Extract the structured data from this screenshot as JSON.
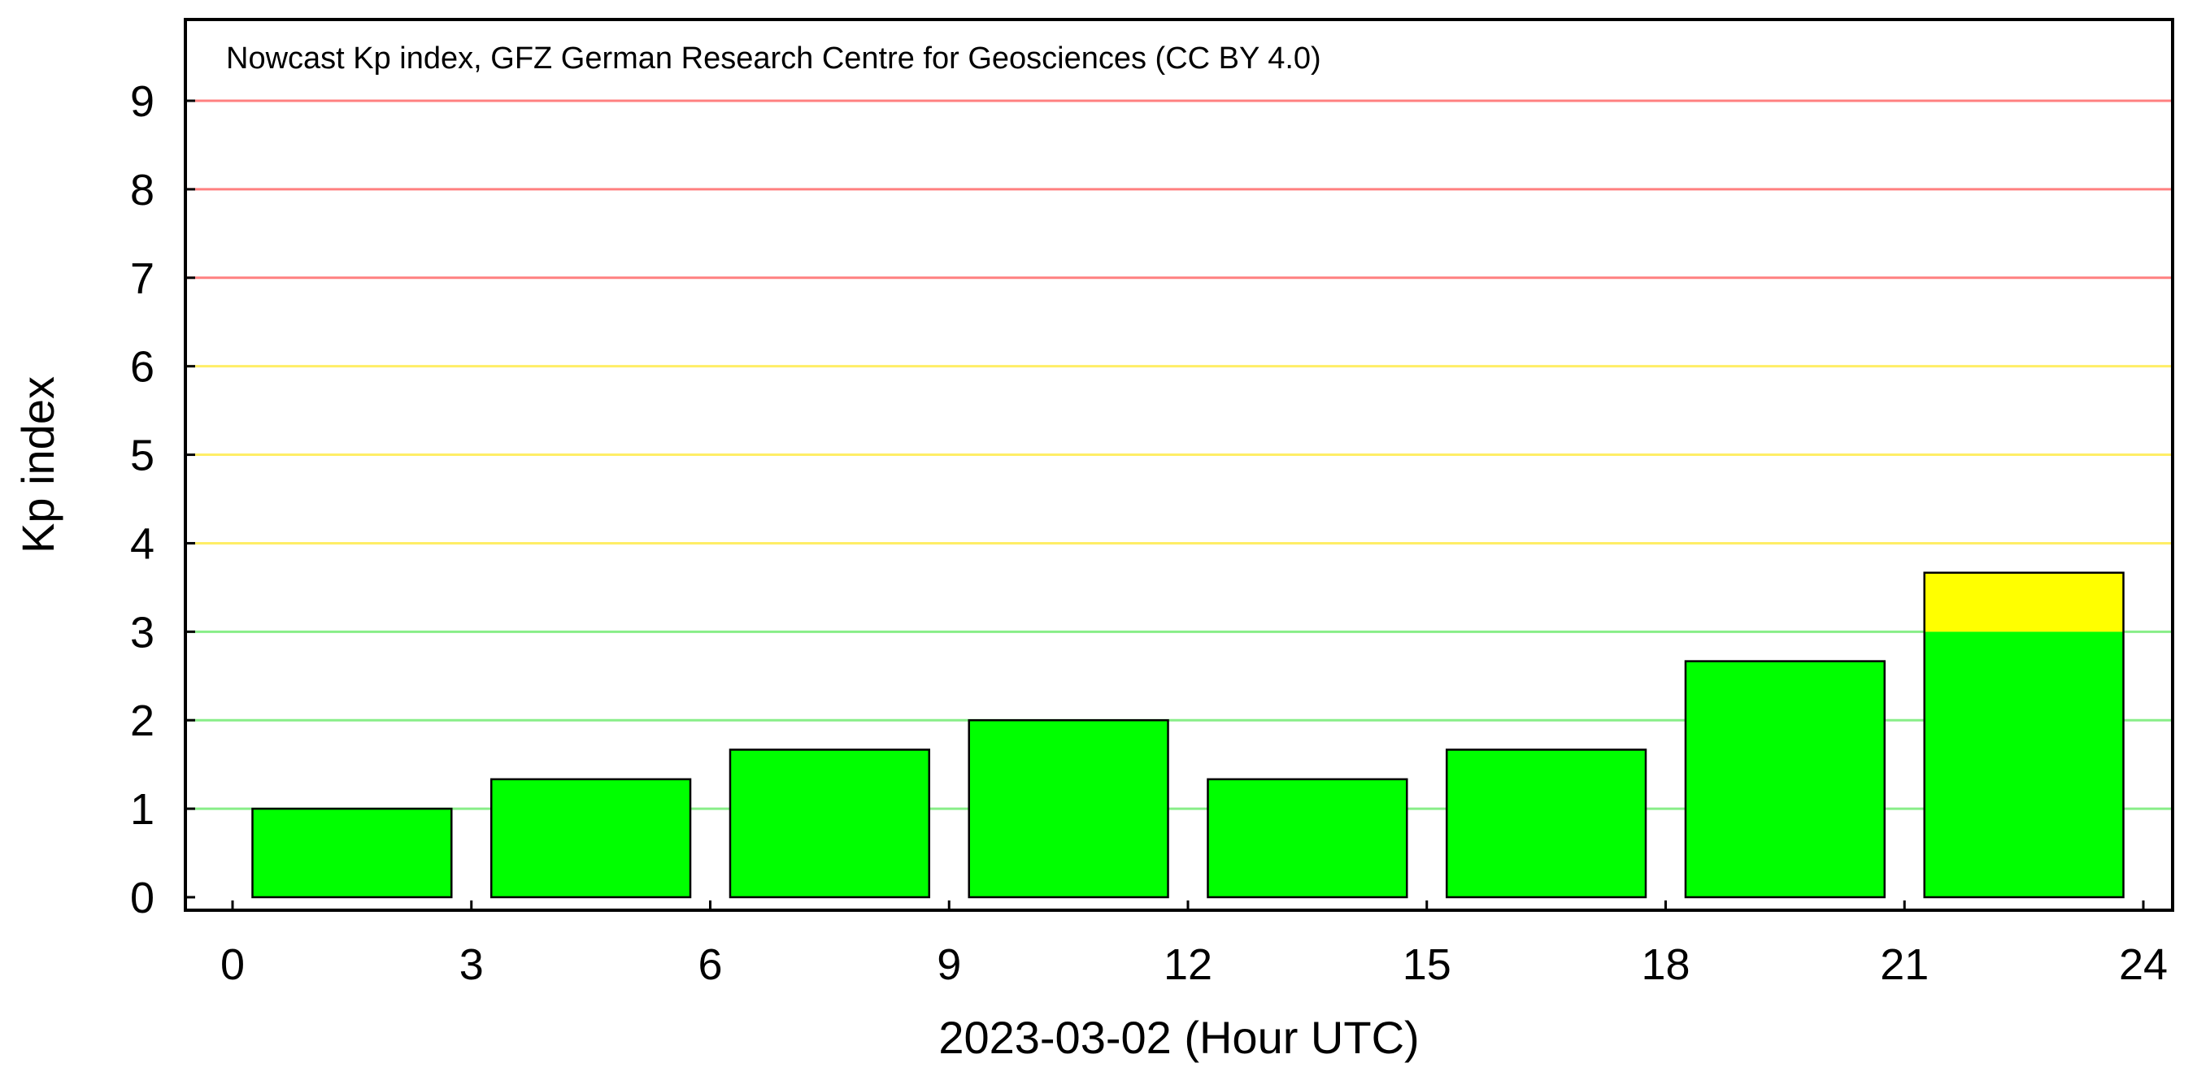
{
  "chart_data": {
    "type": "bar",
    "title": "Nowcast Kp index, GFZ German Research Centre for Geosciences (CC BY 4.0)",
    "xlabel": "2023-03-02 (Hour UTC)",
    "ylabel": "Kp index",
    "xlim": [
      0,
      24
    ],
    "ylim": [
      0,
      9
    ],
    "x_ticks": [
      "0",
      "3",
      "6",
      "9",
      "12",
      "15",
      "18",
      "21",
      "24"
    ],
    "y_ticks": [
      "0",
      "1",
      "2",
      "3",
      "4",
      "5",
      "6",
      "7",
      "8",
      "9"
    ],
    "bar_width_hours": 3,
    "bars": [
      {
        "start": 0,
        "end": 3,
        "value": 1.0
      },
      {
        "start": 3,
        "end": 6,
        "value": 1.333
      },
      {
        "start": 6,
        "end": 9,
        "value": 1.667
      },
      {
        "start": 9,
        "end": 12,
        "value": 2.0
      },
      {
        "start": 12,
        "end": 15,
        "value": 1.333
      },
      {
        "start": 15,
        "end": 18,
        "value": 1.667
      },
      {
        "start": 18,
        "end": 21,
        "value": 2.667
      },
      {
        "start": 21,
        "end": 24,
        "value": 3.667
      }
    ],
    "thresholds": [
      {
        "range": [
          0,
          3
        ],
        "color": "#00ff00"
      },
      {
        "range": [
          3,
          6
        ],
        "color": "#ffff00"
      },
      {
        "range": [
          6,
          9
        ],
        "color": "#ff0000"
      }
    ],
    "gridlines": [
      {
        "value": 1,
        "color": "#88ee88"
      },
      {
        "value": 2,
        "color": "#88ee88"
      },
      {
        "value": 3,
        "color": "#88ee88"
      },
      {
        "value": 4,
        "color": "#ffee66"
      },
      {
        "value": 5,
        "color": "#ffee66"
      },
      {
        "value": 6,
        "color": "#ffee66"
      },
      {
        "value": 7,
        "color": "#ff8080"
      },
      {
        "value": 8,
        "color": "#ff8080"
      },
      {
        "value": 9,
        "color": "#ff8080"
      }
    ],
    "grid": true,
    "legend": "none"
  }
}
